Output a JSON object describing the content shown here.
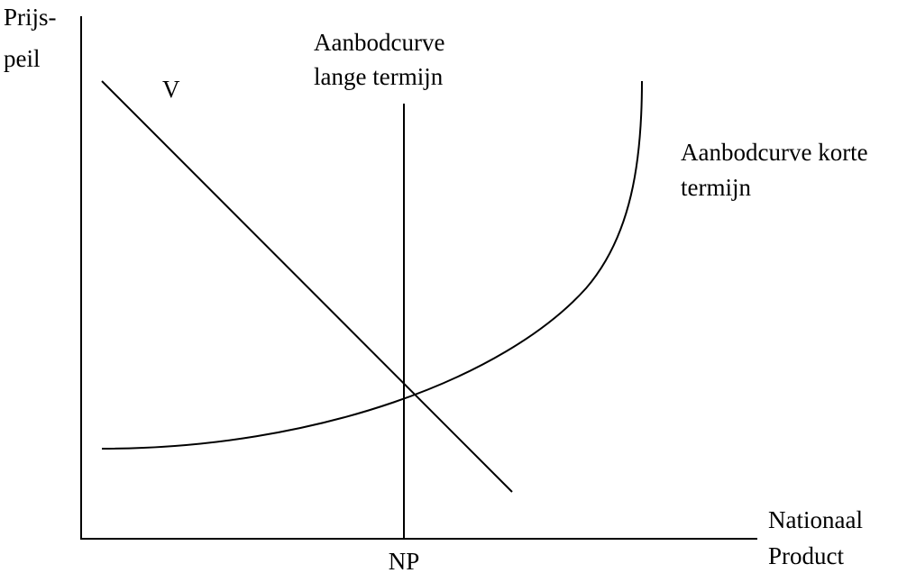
{
  "diagram": {
    "y_axis_label": [
      "Prijs-",
      "peil"
    ],
    "x_axis_label": [
      "Nationaal",
      "Product"
    ],
    "x_marker": "NP",
    "curves": [
      {
        "label": [
          "V"
        ]
      },
      {
        "label": [
          "Aanbodcurve",
          "lange termijn"
        ]
      },
      {
        "label": [
          "Aanbodcurve korte",
          "termijn"
        ]
      }
    ]
  }
}
